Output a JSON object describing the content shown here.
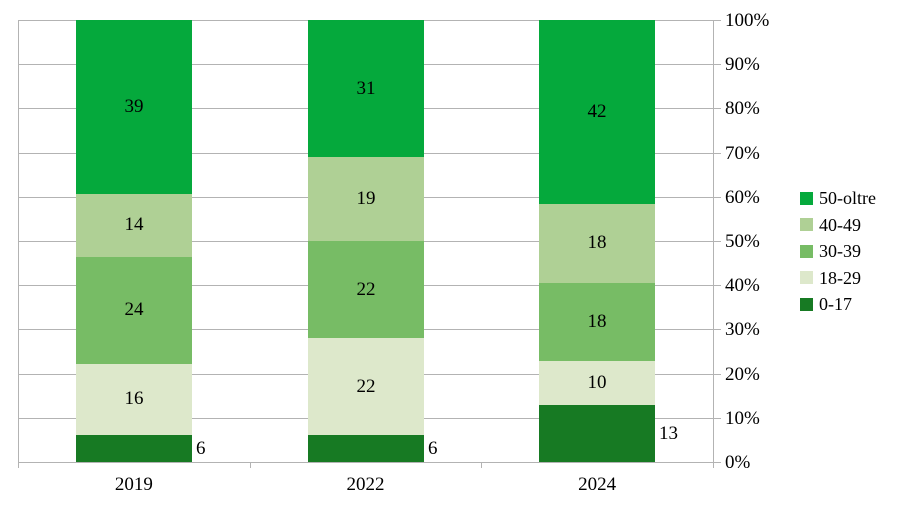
{
  "chart_data": {
    "type": "bar",
    "variant": "stacked-percent",
    "title": "",
    "xlabel": "",
    "ylabel": "",
    "categories": [
      "2019",
      "2022",
      "2024"
    ],
    "series": [
      {
        "name": "0-17",
        "color": "#177A23",
        "values": [
          6,
          6,
          13
        ],
        "labels_outside": true
      },
      {
        "name": "18-29",
        "color": "#DDE8CB",
        "values": [
          16,
          22,
          10
        ],
        "labels_outside": false
      },
      {
        "name": "30-39",
        "color": "#77BC65",
        "values": [
          24,
          22,
          18
        ],
        "labels_outside": false
      },
      {
        "name": "40-49",
        "color": "#AFD095",
        "values": [
          14,
          19,
          18
        ],
        "labels_outside": false
      },
      {
        "name": "50-oltre",
        "color": "#05A93C",
        "values": [
          39,
          31,
          42
        ],
        "labels_outside": false
      }
    ],
    "y_ticks": [
      "100%",
      "90%",
      "80%",
      "70%",
      "60%",
      "50%",
      "40%",
      "30%",
      "20%",
      "10%",
      "0%"
    ],
    "ylim": [
      0,
      100
    ],
    "grid": true,
    "legend": {
      "position": "right",
      "items": [
        "50-oltre",
        "40-49",
        "30-39",
        "18-29",
        "0-17"
      ]
    }
  },
  "colors": {
    "axis_and_grid": "#b3b3b3",
    "background": "#ffffff",
    "text": "#000000"
  }
}
